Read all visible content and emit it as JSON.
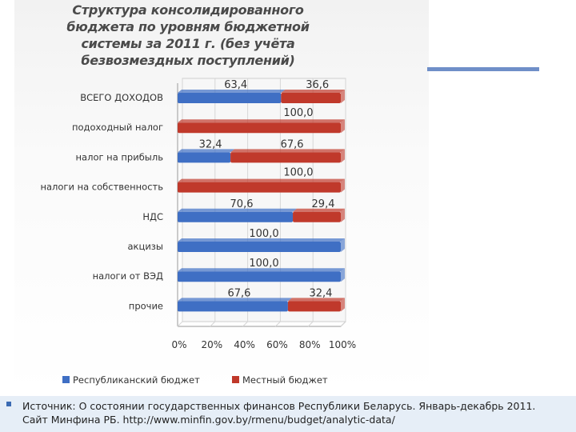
{
  "chart_data": {
    "type": "bar",
    "stacked": true,
    "orientation": "horizontal",
    "title_lines": [
      "Структура консолидированного",
      "бюджета по уровням бюджетной",
      "системы за 2011 г. (без учёта",
      "безвозмездных поступлений)"
    ],
    "categories": [
      "ВСЕГО ДОХОДОВ",
      "подоходный налог",
      "налог на прибыль",
      "налоги на собственность",
      "НДС",
      "акцизы",
      "налоги от ВЭД",
      "прочие"
    ],
    "series": [
      {
        "name": "Республиканский бюджет",
        "color": "#3f6fc4",
        "values": [
          63.4,
          0,
          32.4,
          0,
          70.6,
          100.0,
          100.0,
          67.6
        ],
        "labels": [
          "63,4",
          "",
          "32,4",
          "",
          "70,6",
          "100,0",
          "100,0",
          "67,6"
        ]
      },
      {
        "name": "Местный бюджет",
        "color": "#c0392b",
        "values": [
          36.6,
          100.0,
          67.6,
          100.0,
          29.4,
          0,
          0,
          32.4
        ],
        "labels": [
          "36,6",
          "100,0",
          "67,6",
          "100,0",
          "29,4",
          "",
          "",
          "32,4"
        ]
      }
    ],
    "x_ticks": [
      "0%",
      "20%",
      "40%",
      "60%",
      "80%",
      "100%"
    ],
    "xlim": [
      0,
      100
    ],
    "grid": true,
    "legend_position": "bottom"
  },
  "footer": {
    "source_line1": "Источник:  О состоянии государственных финансов Республики Беларусь. Январь-декабрь 2011.",
    "source_line2": "Сайт Минфина РБ. http://www.minfin.gov.by/rmenu/budget/analytic-data/"
  }
}
